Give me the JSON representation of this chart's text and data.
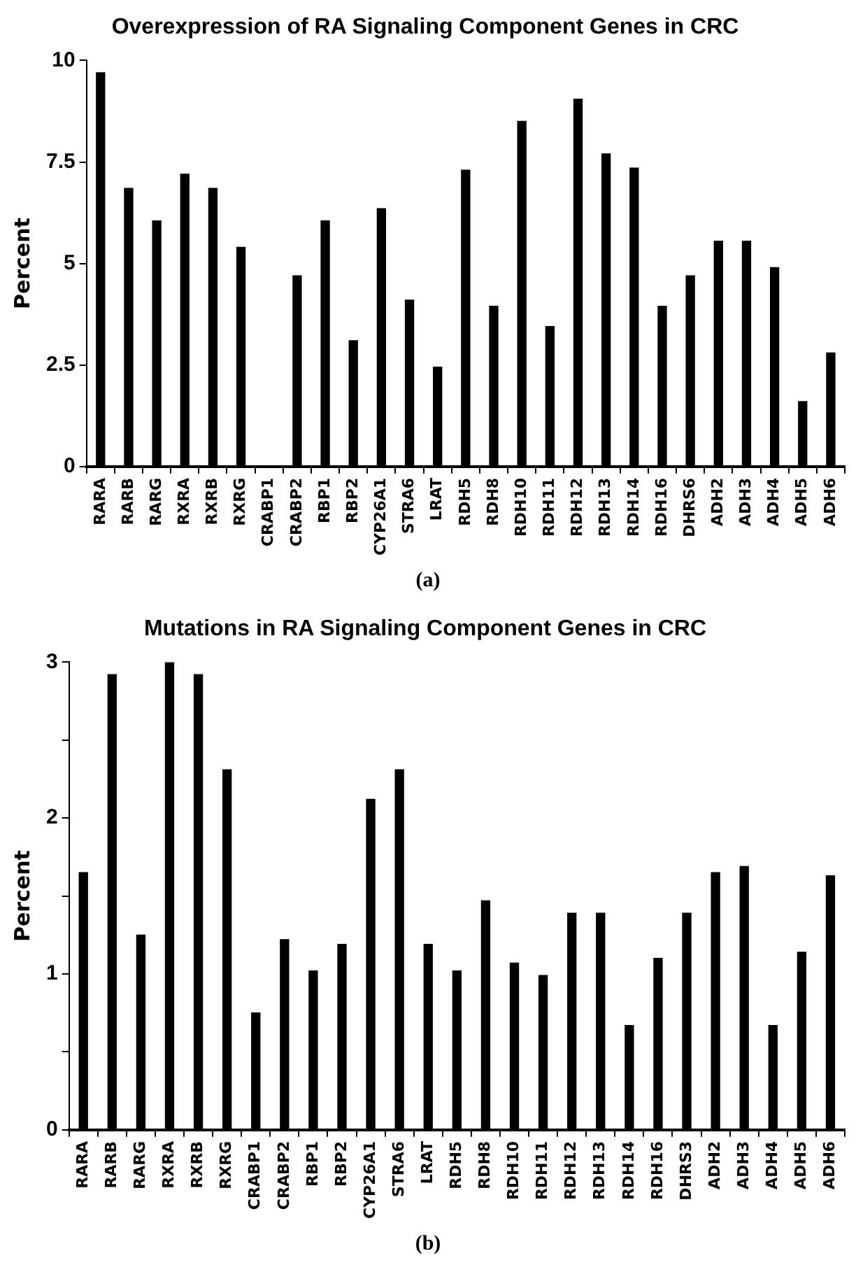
{
  "chart_data": [
    {
      "type": "bar",
      "title": "Overexpression of RA Signaling Component Genes in CRC",
      "ylabel": "Percent",
      "categories": [
        "RARA",
        "RARB",
        "RARG",
        "RXRA",
        "RXRB",
        "RXRG",
        "CRABP1",
        "CRABP2",
        "RBP1",
        "RBP2",
        "CYP26A1",
        "STRA6",
        "LRAT",
        "RDH5",
        "RDH8",
        "RDH10",
        "RDH11",
        "RDH12",
        "RDH13",
        "RDH14",
        "RDH16",
        "DHRS6",
        "ADH2",
        "ADH3",
        "ADH4",
        "ADH5",
        "ADH6"
      ],
      "values": [
        9.7,
        6.85,
        6.05,
        7.2,
        6.85,
        5.4,
        0,
        4.7,
        6.05,
        3.1,
        6.35,
        4.1,
        2.45,
        7.3,
        3.95,
        8.5,
        3.45,
        9.05,
        7.7,
        7.35,
        3.95,
        4.7,
        5.55,
        5.55,
        4.9,
        1.6,
        2.8
      ],
      "color": "#000000",
      "ylim": [
        0,
        10
      ],
      "yticks": [
        0,
        2.5,
        5,
        7.5,
        10
      ],
      "grid": false,
      "annotations": [
        "(a)"
      ]
    },
    {
      "type": "bar",
      "title": "Mutations in RA Signaling Component Genes in CRC",
      "ylabel": "Percent",
      "categories": [
        "RARA",
        "RARB",
        "RARG",
        "RXRA",
        "RXRB",
        "RXRG",
        "CRABP1",
        "CRABP2",
        "RBP1",
        "RBP2",
        "CYP26A1",
        "STRA6",
        "LRAT",
        "RDH5",
        "RDH8",
        "RDH10",
        "RDH11",
        "RDH12",
        "RDH13",
        "RDH14",
        "RDH16",
        "DHRS3",
        "ADH2",
        "ADH3",
        "ADH4",
        "ADH5",
        "ADH6"
      ],
      "values": [
        1.65,
        2.92,
        1.25,
        3,
        2.92,
        2.31,
        0.75,
        1.22,
        1.02,
        1.19,
        2.12,
        2.31,
        1.19,
        1.02,
        1.47,
        1.07,
        0.99,
        1.39,
        1.39,
        0.67,
        1.1,
        1.39,
        1.65,
        1.69,
        0.67,
        1.14,
        1.63
      ],
      "color": "#000000",
      "ylim": [
        0,
        3
      ],
      "yticks": [
        0,
        {
          "value": 0.5,
          "label": null
        },
        1,
        {
          "value": 1.5,
          "label": null
        },
        2,
        {
          "value": 2.5,
          "label": null
        },
        3
      ],
      "grid": false,
      "annotations": [
        "(b)"
      ]
    }
  ]
}
